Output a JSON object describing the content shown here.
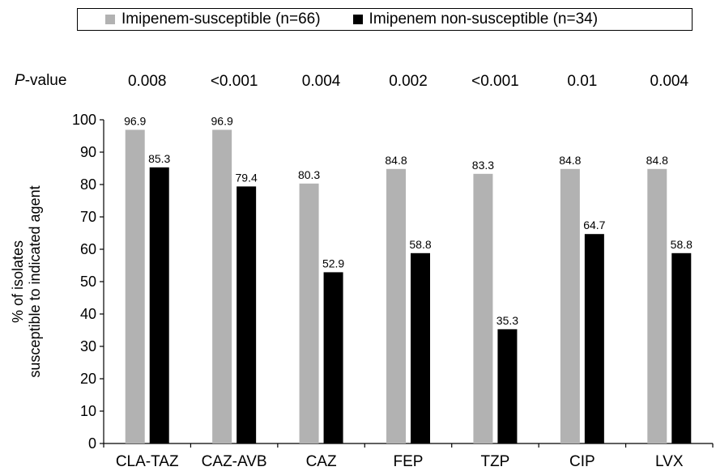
{
  "legend": {
    "series1": "Imipenem-susceptible (n=66)",
    "series2": "Imipenem non-susceptible (n=34)"
  },
  "pvalue_label": {
    "italic": "P",
    "rest": "-value"
  },
  "pvalues": [
    "0.008",
    "<0.001",
    "0.004",
    "0.002",
    "<0.001",
    "0.01",
    "0.004"
  ],
  "chart_data": {
    "type": "bar",
    "title": "",
    "xlabel": "",
    "ylabel": [
      "% of isolates",
      "susceptible to indicated agent"
    ],
    "ylim": [
      0,
      100
    ],
    "yticks": [
      0,
      10,
      20,
      30,
      40,
      50,
      60,
      70,
      80,
      90,
      100
    ],
    "grid": false,
    "legend_position": "top",
    "categories": [
      "CLA-TAZ",
      "CAZ-AVB",
      "CAZ",
      "FEP",
      "TZP",
      "CIP",
      "LVX"
    ],
    "series": [
      {
        "name": "Imipenem-susceptible (n=66)",
        "color": "#b2b2b2",
        "values": [
          96.9,
          96.9,
          80.3,
          84.8,
          83.3,
          84.8,
          84.8
        ]
      },
      {
        "name": "Imipenem non-susceptible (n=34)",
        "color": "#000000",
        "values": [
          85.3,
          79.4,
          52.9,
          58.8,
          35.3,
          64.7,
          58.8
        ]
      }
    ]
  }
}
